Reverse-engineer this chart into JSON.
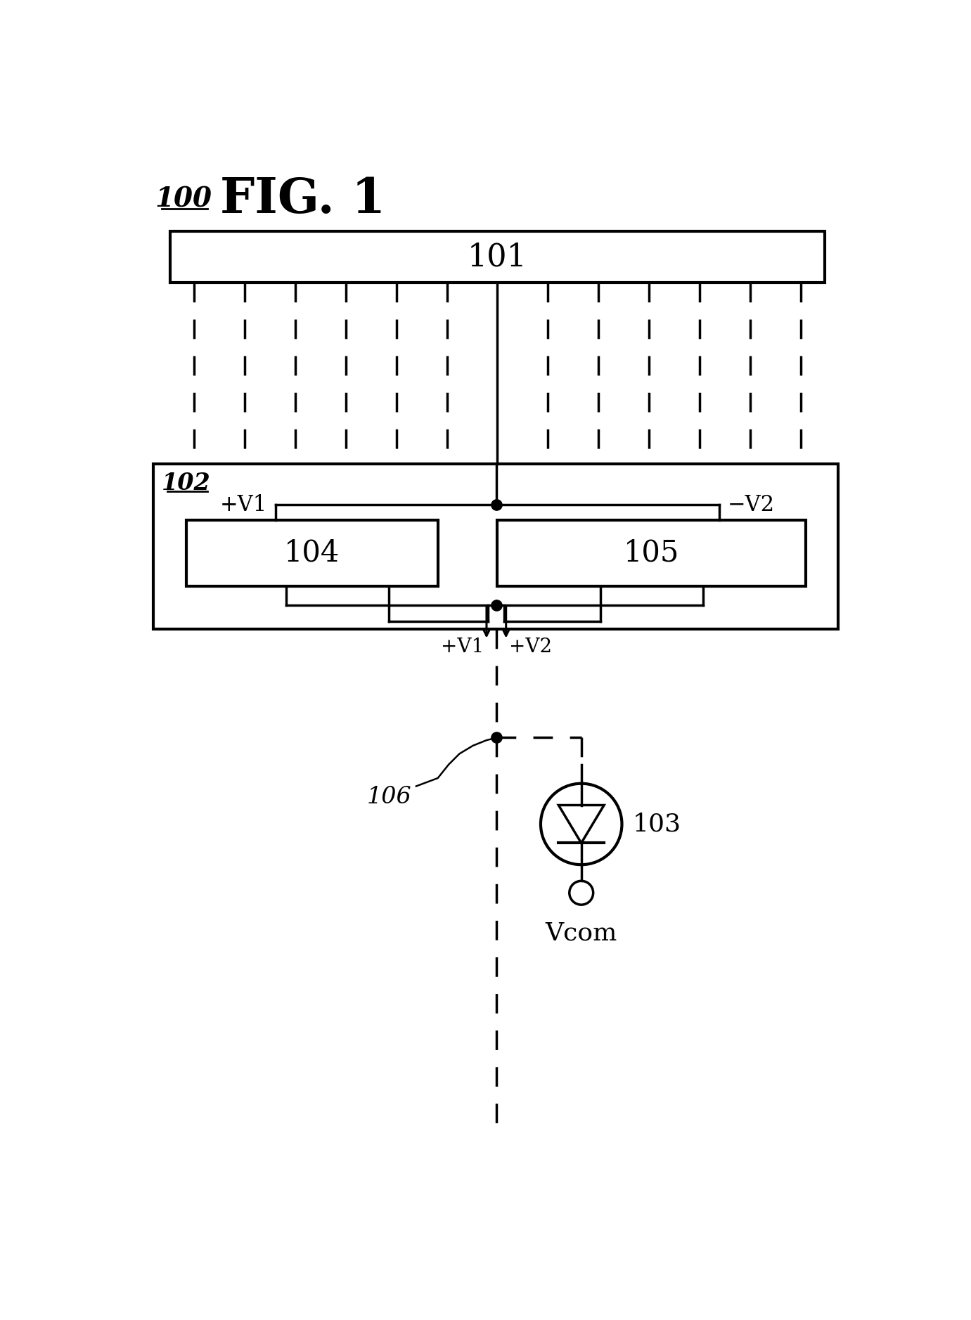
{
  "fig_label": "100",
  "fig_title": "FIG. 1",
  "box101_label": "101",
  "box102_label": "102",
  "box104_label": "104",
  "box105_label": "105",
  "node103_label": "103",
  "node106_label": "106",
  "vcom_label": "Vcom",
  "v1_top_label": "+V1",
  "v2_top_label": "−V2",
  "v1_bot_label": "+V1",
  "v2_bot_label": "+V2",
  "bg_color": "#ffffff",
  "line_color": "#000000",
  "num_dashed_lines": 13,
  "fig_w": 13.81,
  "fig_h": 18.78,
  "dpi": 100
}
